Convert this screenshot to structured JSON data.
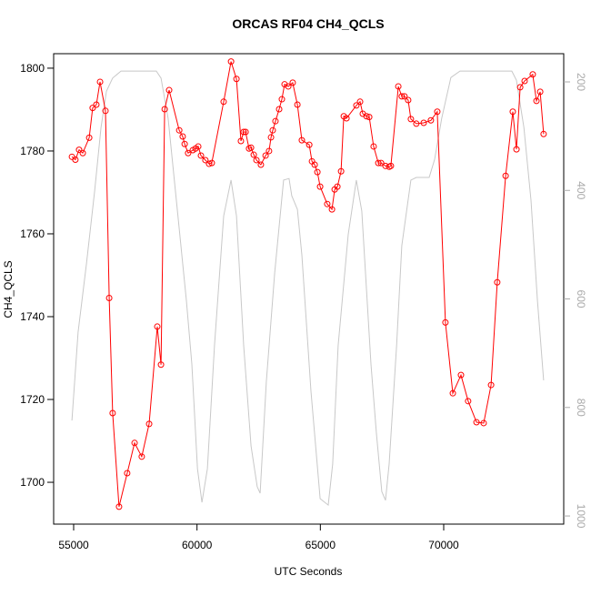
{
  "chart_data": {
    "type": "line",
    "title": "ORCAS RF04 CH4_QCLS",
    "x_label": "UTC Seconds",
    "y_label": "CH4_QCLS",
    "xlim": [
      54189,
      74865
    ],
    "xticks": [
      55000,
      60000,
      65000,
      70000
    ],
    "ylim": [
      1689.9,
      1803.5
    ],
    "yticks": [
      1700,
      1720,
      1740,
      1760,
      1780,
      1800
    ],
    "y2lim": [
      1015,
      148
    ],
    "y2ticks": [
      200,
      400,
      600,
      800,
      1000
    ],
    "series": [
      {
        "color": "#ff0000",
        "markers": true,
        "x": [
          54930,
          55070,
          55220,
          55370,
          55630,
          55770,
          55920,
          56070,
          56290,
          56440,
          56580,
          56840,
          57170,
          57470,
          57760,
          58060,
          58390,
          58540,
          58690,
          58870,
          59280,
          59420,
          59500,
          59640,
          59830,
          59940,
          60050,
          60160,
          60340,
          60490,
          60600,
          61080,
          61380,
          61600,
          61780,
          61890,
          61970,
          62110,
          62190,
          62300,
          62410,
          62590,
          62780,
          62920,
          63000,
          63070,
          63180,
          63330,
          63440,
          63550,
          63700,
          63880,
          64070,
          64250,
          64550,
          64660,
          64770,
          64880,
          64990,
          65280,
          65470,
          65580,
          65690,
          65840,
          65950,
          66060,
          66460,
          66610,
          66720,
          66870,
          66980,
          67160,
          67350,
          67460,
          67640,
          67790,
          67860,
          68160,
          68300,
          68410,
          68560,
          68670,
          68890,
          69190,
          69480,
          69740,
          70070,
          70370,
          70700,
          70990,
          71330,
          71620,
          71920,
          72170,
          72510,
          72800,
          72950,
          73100,
          73280,
          73610,
          73760,
          73910,
          74050
        ],
        "values": [
          1778.6,
          1777.9,
          1780.3,
          1779.5,
          1783.2,
          1790.4,
          1791.2,
          1796.7,
          1789.7,
          1744.5,
          1716.7,
          1694.1,
          1702.2,
          1709.5,
          1706.2,
          1714.1,
          1737.6,
          1728.4,
          1790.1,
          1794.7,
          1785.0,
          1783.5,
          1781.7,
          1779.5,
          1780.2,
          1780.6,
          1781.1,
          1778.9,
          1777.8,
          1776.9,
          1777.1,
          1791.9,
          1801.6,
          1797.4,
          1782.4,
          1784.6,
          1784.6,
          1780.6,
          1780.8,
          1779.1,
          1777.8,
          1776.7,
          1778.9,
          1780.0,
          1783.3,
          1785.0,
          1787.2,
          1790.1,
          1792.5,
          1796.1,
          1795.6,
          1796.5,
          1791.2,
          1782.6,
          1781.5,
          1777.5,
          1776.7,
          1774.9,
          1771.4,
          1767.2,
          1765.9,
          1770.7,
          1771.4,
          1775.1,
          1788.4,
          1787.9,
          1791.0,
          1791.9,
          1789.0,
          1788.4,
          1788.2,
          1781.1,
          1777.1,
          1777.1,
          1776.4,
          1776.2,
          1776.4,
          1795.6,
          1793.2,
          1793.2,
          1792.3,
          1787.7,
          1786.6,
          1786.8,
          1787.4,
          1789.5,
          1738.6,
          1721.5,
          1725.9,
          1719.6,
          1714.5,
          1714.3,
          1723.5,
          1748.3,
          1774.0,
          1789.5,
          1780.4,
          1795.4,
          1796.9,
          1798.5,
          1792.1,
          1794.3,
          1784.1
        ]
      },
      {
        "color": "#c8c8c8",
        "markers": false,
        "axis": "y2",
        "x": [
          54930,
          55180,
          55520,
          55850,
          56110,
          56330,
          56580,
          56920,
          57360,
          58350,
          58540,
          58830,
          59240,
          59570,
          59790,
          60020,
          60200,
          60420,
          60710,
          61080,
          61380,
          61600,
          61890,
          62190,
          62440,
          62560,
          62810,
          63150,
          63510,
          63730,
          63840,
          64070,
          64250,
          64620,
          64990,
          65320,
          65500,
          65720,
          66130,
          66460,
          66680,
          67050,
          67270,
          67490,
          67640,
          67790,
          68090,
          68300,
          68670,
          68890,
          69410,
          69630,
          69920,
          70290,
          70660,
          71170,
          72760,
          72950,
          73250,
          73540,
          73800,
          74050
        ],
        "values": [
          824,
          661,
          535,
          401,
          284,
          217,
          193,
          180,
          180,
          180,
          193,
          267,
          452,
          603,
          720,
          913,
          975,
          913,
          686,
          447,
          381,
          447,
          686,
          871,
          946,
          958,
          753,
          552,
          381,
          378,
          410,
          435,
          519,
          770,
          968,
          980,
          904,
          686,
          481,
          381,
          438,
          720,
          846,
          955,
          971,
          904,
          686,
          502,
          381,
          376,
          376,
          343,
          267,
          192,
          180,
          180,
          180,
          197,
          284,
          418,
          603,
          750
        ]
      }
    ]
  }
}
